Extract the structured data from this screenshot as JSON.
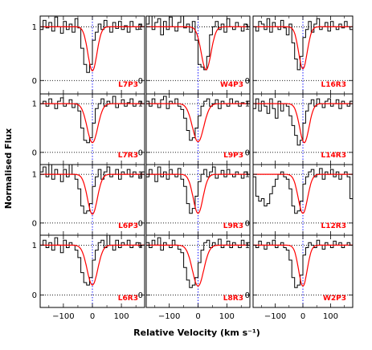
{
  "chart_data": {
    "type": "line",
    "xlabel": "Relative Velocity (km s⁻¹)",
    "ylabel": "Normalised Flux",
    "xlim": [
      -180,
      180
    ],
    "ylim": [
      -0.25,
      1.2
    ],
    "x_ticks": [
      -100,
      0,
      100
    ],
    "y_ticks": [
      0,
      1
    ],
    "grid": false,
    "reference_lines": {
      "flux_levels": [
        0,
        1
      ],
      "velocity_zero": 0
    },
    "colors": {
      "data": "#000000",
      "model": "#ff0000",
      "zero_line": "#0000ff"
    },
    "panels": [
      {
        "label": "L7P3",
        "row": 0,
        "col": 0,
        "model": {
          "depth": 0.82,
          "center": 0,
          "width": 22
        },
        "flux": [
          0.95,
          1.12,
          0.98,
          1.08,
          0.92,
          1.18,
          1.0,
          0.88,
          1.1,
          0.95,
          1.05,
          0.9,
          1.15,
          0.98,
          0.6,
          0.3,
          0.15,
          0.3,
          0.75,
          0.9,
          1.05,
          0.95,
          1.12,
          1.0,
          0.9,
          1.08,
          0.97,
          1.1,
          0.95,
          1.02,
          0.9,
          1.1,
          1.0,
          0.95,
          1.05,
          1.0
        ]
      },
      {
        "label": "W4P3",
        "row": 0,
        "col": 1,
        "model": {
          "depth": 0.8,
          "center": 28,
          "width": 24
        },
        "flux": [
          1.05,
          1.2,
          0.95,
          1.08,
          1.15,
          0.85,
          1.1,
          0.95,
          1.18,
          1.0,
          0.92,
          1.08,
          1.2,
          0.98,
          1.05,
          0.9,
          1.1,
          0.75,
          0.3,
          0.25,
          0.2,
          0.45,
          0.85,
          1.0,
          1.1,
          0.95,
          1.05,
          0.9,
          1.15,
          1.0,
          0.95,
          1.08,
          1.0,
          0.92,
          1.05,
          1.0
        ]
      },
      {
        "label": "L16R3",
        "row": 0,
        "col": 2,
        "model": {
          "depth": 0.78,
          "center": 0,
          "width": 22
        },
        "flux": [
          1.0,
          0.92,
          1.1,
          1.05,
          0.95,
          1.15,
          0.9,
          1.08,
          1.0,
          0.95,
          1.12,
          0.98,
          0.85,
          1.05,
          0.7,
          0.4,
          0.2,
          0.45,
          0.8,
          0.95,
          1.1,
          0.9,
          1.05,
          1.15,
          0.95,
          1.0,
          1.08,
          0.92,
          1.1,
          1.0,
          0.95,
          1.05,
          0.98,
          1.1,
          1.0,
          0.95
        ]
      },
      {
        "label": "L7R3",
        "row": 1,
        "col": 0,
        "model": {
          "depth": 0.8,
          "center": 0,
          "width": 26
        },
        "flux": [
          1.0,
          1.05,
          0.95,
          1.1,
          1.0,
          0.9,
          1.05,
          1.12,
          0.95,
          1.0,
          1.08,
          0.92,
          1.0,
          0.85,
          0.5,
          0.25,
          0.2,
          0.3,
          0.6,
          0.9,
          1.0,
          1.1,
          0.95,
          1.05,
          1.0,
          1.15,
          0.92,
          1.0,
          1.08,
          0.95,
          1.02,
          1.1,
          0.95,
          1.0,
          1.05,
          1.0
        ]
      },
      {
        "label": "L9P3",
        "row": 1,
        "col": 1,
        "model": {
          "depth": 0.78,
          "center": 0,
          "width": 28
        },
        "flux": [
          1.05,
          0.95,
          1.1,
          1.0,
          0.92,
          1.08,
          1.15,
          0.9,
          1.05,
          1.0,
          1.1,
          0.95,
          0.88,
          0.7,
          0.45,
          0.25,
          0.3,
          0.5,
          0.75,
          0.95,
          1.05,
          1.1,
          0.95,
          1.0,
          1.08,
          0.9,
          1.05,
          1.0,
          0.95,
          1.1,
          1.0,
          1.05,
          0.95,
          1.02,
          1.0,
          1.05
        ]
      },
      {
        "label": "L14R3",
        "row": 1,
        "col": 2,
        "model": {
          "depth": 0.8,
          "center": 5,
          "width": 24
        },
        "flux": [
          0.9,
          1.1,
          0.85,
          1.05,
          0.95,
          0.8,
          1.1,
          0.9,
          0.7,
          1.05,
          0.85,
          1.0,
          0.95,
          0.75,
          0.55,
          0.35,
          0.15,
          0.25,
          0.6,
          0.85,
          1.0,
          1.08,
          0.95,
          1.1,
          1.0,
          0.92,
          1.05,
          1.1,
          0.95,
          1.0,
          1.08,
          0.9,
          1.05,
          1.0,
          0.95,
          1.05
        ]
      },
      {
        "label": "L6P3",
        "row": 2,
        "col": 0,
        "model": {
          "depth": 0.82,
          "center": 0,
          "width": 24
        },
        "flux": [
          1.05,
          1.15,
          0.95,
          1.2,
          0.9,
          1.1,
          1.0,
          0.85,
          1.1,
          0.95,
          1.2,
          1.0,
          0.9,
          0.7,
          0.35,
          0.2,
          0.25,
          0.4,
          0.75,
          0.95,
          1.1,
          0.9,
          1.05,
          1.15,
          0.95,
          1.0,
          1.1,
          0.9,
          1.05,
          1.0,
          1.1,
          0.95,
          1.05,
          1.0,
          0.92,
          1.05
        ]
      },
      {
        "label": "L9R3",
        "row": 2,
        "col": 1,
        "model": {
          "depth": 0.8,
          "center": 0,
          "width": 24
        },
        "flux": [
          0.95,
          1.1,
          1.0,
          0.85,
          1.15,
          0.95,
          1.05,
          0.9,
          1.1,
          1.0,
          0.95,
          1.12,
          0.9,
          0.75,
          0.4,
          0.2,
          0.3,
          0.55,
          0.85,
          1.0,
          1.1,
          0.95,
          1.05,
          1.15,
          0.92,
          1.0,
          1.08,
          0.95,
          1.1,
          1.0,
          0.95,
          1.05,
          1.0,
          0.92,
          1.05,
          1.0
        ]
      },
      {
        "label": "L12R3",
        "row": 2,
        "col": 2,
        "model": {
          "depth": 0.8,
          "center": 0,
          "width": 24
        },
        "flux": [
          0.95,
          0.55,
          0.45,
          0.5,
          0.35,
          0.4,
          0.6,
          0.75,
          0.9,
          1.0,
          1.05,
          0.95,
          0.9,
          0.7,
          0.35,
          0.2,
          0.25,
          0.45,
          0.8,
          0.95,
          1.05,
          1.1,
          0.95,
          1.0,
          1.12,
          0.9,
          1.05,
          1.0,
          1.1,
          0.95,
          1.05,
          0.9,
          1.0,
          1.05,
          0.95,
          0.5
        ]
      },
      {
        "label": "L6R3",
        "row": 3,
        "col": 0,
        "model": {
          "depth": 0.8,
          "center": 0,
          "width": 26
        },
        "flux": [
          1.0,
          1.1,
          0.95,
          1.05,
          0.9,
          1.15,
          1.0,
          0.85,
          1.1,
          0.95,
          1.05,
          1.0,
          0.9,
          0.75,
          0.45,
          0.25,
          0.2,
          0.35,
          0.7,
          0.9,
          1.05,
          1.1,
          0.95,
          1.2,
          1.0,
          0.9,
          1.1,
          0.95,
          1.05,
          1.0,
          1.1,
          0.95,
          1.0,
          1.05,
          0.98,
          1.0
        ]
      },
      {
        "label": "L8R3",
        "row": 3,
        "col": 1,
        "model": {
          "depth": 0.82,
          "center": 0,
          "width": 28
        },
        "flux": [
          1.05,
          0.95,
          1.1,
          1.0,
          1.15,
          0.9,
          1.05,
          1.0,
          0.95,
          1.1,
          1.0,
          0.92,
          0.85,
          0.55,
          0.3,
          0.15,
          0.2,
          0.35,
          0.65,
          0.9,
          1.05,
          1.1,
          0.95,
          1.05,
          1.0,
          1.12,
          0.95,
          1.0,
          1.08,
          0.95,
          1.05,
          1.0,
          0.95,
          1.1,
          1.0,
          1.05
        ]
      },
      {
        "label": "W2P3",
        "row": 3,
        "col": 2,
        "model": {
          "depth": 0.82,
          "center": 0,
          "width": 22
        },
        "flux": [
          1.0,
          0.95,
          1.08,
          1.0,
          0.92,
          1.05,
          1.0,
          1.1,
          0.95,
          1.0,
          1.05,
          0.95,
          0.9,
          0.7,
          0.35,
          0.15,
          0.2,
          0.4,
          0.8,
          0.95,
          1.05,
          1.0,
          0.95,
          1.1,
          1.0,
          0.92,
          1.05,
          1.0,
          0.95,
          1.08,
          1.0,
          1.05,
          0.95,
          1.0,
          1.05,
          1.0
        ]
      }
    ]
  }
}
